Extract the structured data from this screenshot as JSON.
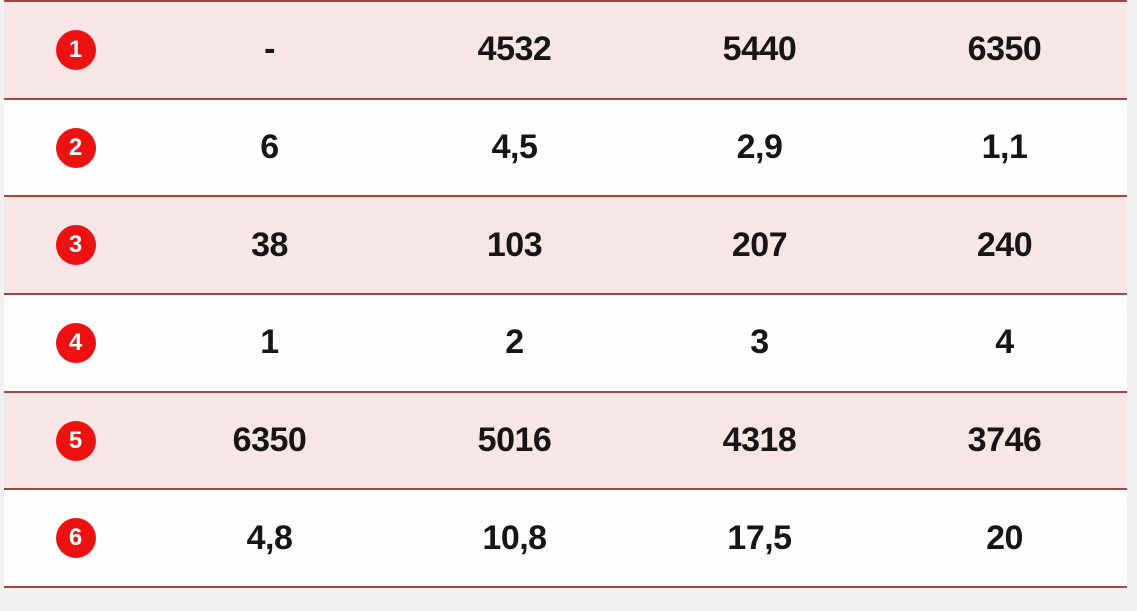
{
  "table": {
    "rows": [
      {
        "num": "1",
        "highlighted": true,
        "values": [
          "-",
          "4532",
          "5440",
          "6350"
        ]
      },
      {
        "num": "2",
        "highlighted": false,
        "values": [
          "6",
          "4,5",
          "2,9",
          "1,1"
        ]
      },
      {
        "num": "3",
        "highlighted": true,
        "values": [
          "38",
          "103",
          "207",
          "240"
        ]
      },
      {
        "num": "4",
        "highlighted": false,
        "values": [
          "1",
          "2",
          "3",
          "4"
        ]
      },
      {
        "num": "5",
        "highlighted": true,
        "values": [
          "6350",
          "5016",
          "4318",
          "3746"
        ]
      },
      {
        "num": "6",
        "highlighted": false,
        "values": [
          "4,8",
          "10,8",
          "17,5",
          "20"
        ]
      }
    ]
  },
  "colors": {
    "page_bg": "#f1f1f1",
    "row_highlight_bg": "#f8e6e6",
    "row_plain_bg": "#fefefe",
    "divider": "#a64444",
    "badge_bg": "#ed1212",
    "badge_text": "#ffffff",
    "cell_text": "#161616"
  }
}
